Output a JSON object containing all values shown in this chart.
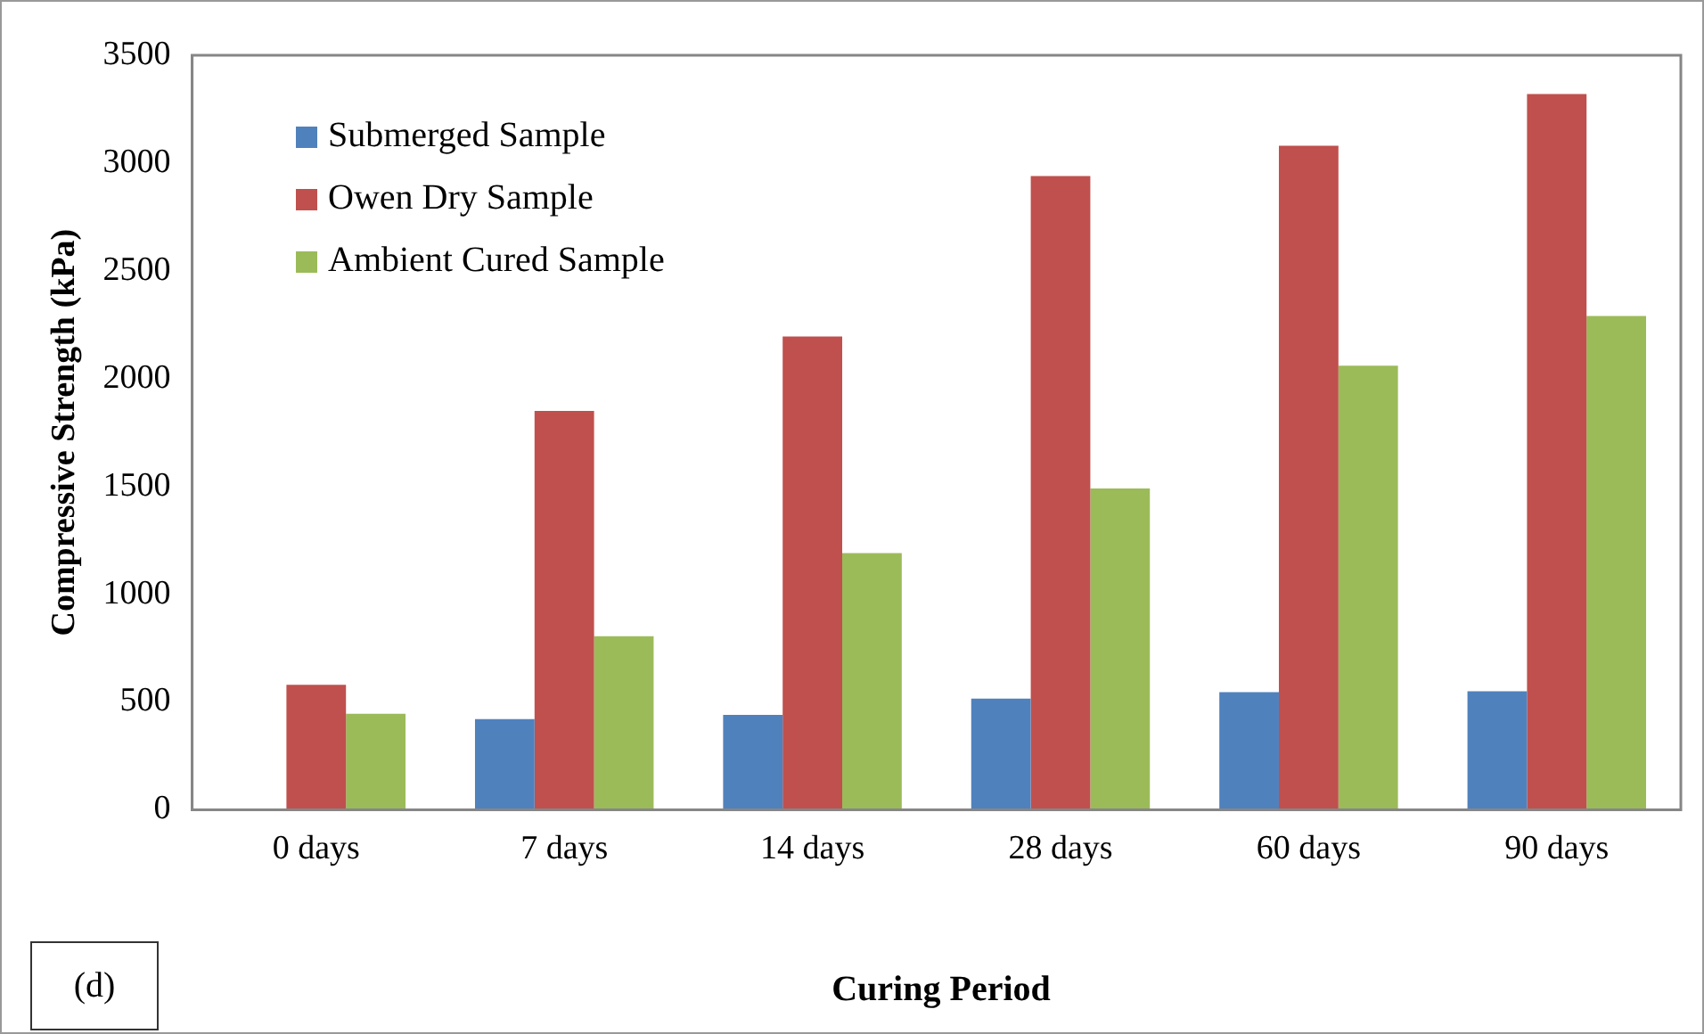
{
  "chart_data": {
    "type": "bar",
    "xlabel": "Curing Period",
    "ylabel": "Compressive Strength (kPa)",
    "categories": [
      "0 days",
      "7 days",
      "14 days",
      "28 days",
      "60 days",
      "90 days"
    ],
    "series": [
      {
        "name": "Submerged Sample",
        "color": "#4f81bd",
        "values": [
          null,
          420,
          440,
          515,
          545,
          550
        ]
      },
      {
        "name": "Owen Dry Sample",
        "color": "#c0504d",
        "values": [
          580,
          1850,
          2195,
          2940,
          3080,
          3320
        ]
      },
      {
        "name": "Ambient Cured Sample",
        "color": "#9bbb59",
        "values": [
          445,
          805,
          1190,
          1490,
          2060,
          2290
        ]
      }
    ],
    "ylim": [
      0,
      3500
    ],
    "yticks": [
      0,
      500,
      1000,
      1500,
      2000,
      2500,
      3000,
      3500
    ],
    "grid": false,
    "legend": "top left",
    "annotations": [
      "(d)"
    ]
  }
}
